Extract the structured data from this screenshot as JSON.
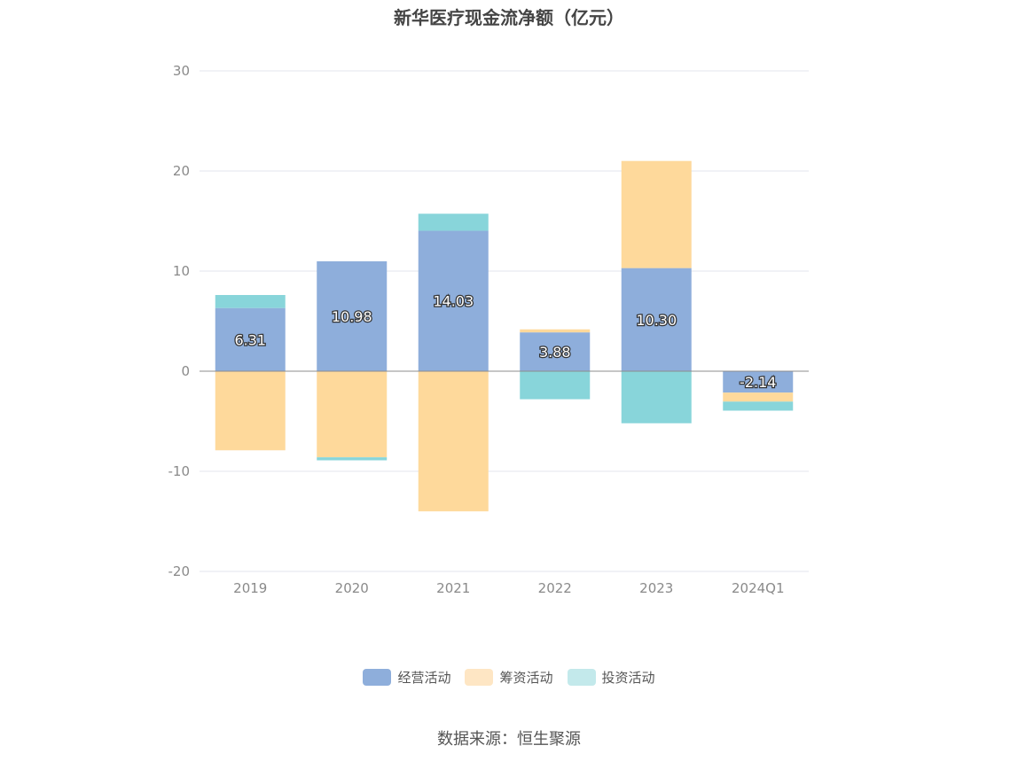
{
  "chart_data": {
    "type": "bar",
    "stacked": true,
    "title": "新华医疗现金流净额（亿元）",
    "categories": [
      "2019",
      "2020",
      "2021",
      "2022",
      "2023",
      "2024Q1"
    ],
    "ylim": [
      -20,
      30
    ],
    "yticks": [
      "30",
      "20",
      "10",
      "0",
      "-10",
      "-20"
    ],
    "ytick_values": [
      30,
      20,
      10,
      0,
      -10,
      -20
    ],
    "grid": true,
    "legend_position": "bottom",
    "series": [
      {
        "name": "经营活动",
        "color": "#8eaedb",
        "values": [
          6.31,
          10.98,
          14.03,
          3.88,
          10.3,
          -2.14
        ],
        "labels": [
          "6.31",
          "10.98",
          "14.03",
          "3.88",
          "10.30",
          "-2.14"
        ]
      },
      {
        "name": "筹资活动",
        "color": "#fed99b",
        "values": [
          -7.9,
          -8.6,
          -14.0,
          0.3,
          10.7,
          -0.9
        ]
      },
      {
        "name": "投资活动",
        "color": "#88d5da",
        "values": [
          1.3,
          -0.3,
          1.7,
          -2.8,
          -5.2,
          -0.9
        ]
      }
    ],
    "legend_swatch_colors": [
      "#8eaedb",
      "#fee6c4",
      "#c3e9eb"
    ]
  },
  "source_text": "数据来源：恒生聚源"
}
